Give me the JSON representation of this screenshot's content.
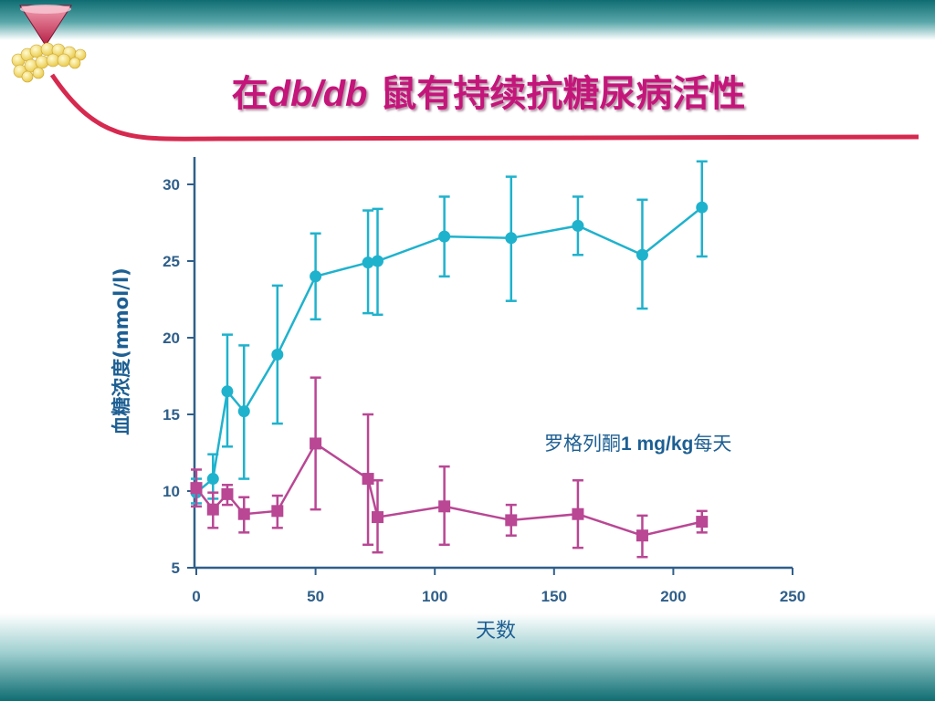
{
  "slide": {
    "title_prefix": "在",
    "title_italic": "db/db",
    "title_suffix": " 鼠有持续抗糖尿病活性"
  },
  "colors": {
    "band": "#0f6d72",
    "accent_line": "#d6294f",
    "title": "#c4167a",
    "axis": "#2f5f8a",
    "series_treated": "#1fb2cd",
    "series_control": "#b94794"
  },
  "chart_data": {
    "type": "line",
    "title": "",
    "xlabel": "天数",
    "ylabel": "血糖浓度(mmol/l)",
    "xlim": [
      0,
      250
    ],
    "ylim": [
      5,
      32
    ],
    "xticks": [
      0,
      50,
      100,
      150,
      200,
      250
    ],
    "yticks": [
      5,
      10,
      15,
      20,
      25,
      30
    ],
    "grid": false,
    "annotation": {
      "text_prefix": "罗格列酮",
      "text_bold": "1 mg/kg",
      "text_suffix": "每天"
    },
    "series": [
      {
        "marker": "circle",
        "color": "#1fb2cd",
        "points": [
          {
            "x": 0,
            "y": 9.9,
            "err_low": 9.2,
            "err_high": 10.8
          },
          {
            "x": 7,
            "y": 10.8,
            "err_low": 9.5,
            "err_high": 12.4
          },
          {
            "x": 13,
            "y": 16.5,
            "err_low": 12.9,
            "err_high": 20.2
          },
          {
            "x": 20,
            "y": 15.2,
            "err_low": 10.8,
            "err_high": 19.5
          },
          {
            "x": 34,
            "y": 18.9,
            "err_low": 14.4,
            "err_high": 23.4
          },
          {
            "x": 50,
            "y": 24.0,
            "err_low": 21.2,
            "err_high": 26.8
          },
          {
            "x": 72,
            "y": 24.9,
            "err_low": 21.6,
            "err_high": 28.3
          },
          {
            "x": 76,
            "y": 25.0,
            "err_low": 21.5,
            "err_high": 28.4
          },
          {
            "x": 104,
            "y": 26.6,
            "err_low": 24.0,
            "err_high": 29.2
          },
          {
            "x": 132,
            "y": 26.5,
            "err_low": 22.4,
            "err_high": 30.5
          },
          {
            "x": 160,
            "y": 27.3,
            "err_low": 25.4,
            "err_high": 29.2
          },
          {
            "x": 187,
            "y": 25.4,
            "err_low": 21.9,
            "err_high": 29.0
          },
          {
            "x": 212,
            "y": 28.5,
            "err_low": 25.3,
            "err_high": 31.5
          }
        ]
      },
      {
        "marker": "square",
        "color": "#b94794",
        "points": [
          {
            "x": 0,
            "y": 10.2,
            "err_low": 9.0,
            "err_high": 11.4
          },
          {
            "x": 7,
            "y": 8.8,
            "err_low": 7.6,
            "err_high": 9.9
          },
          {
            "x": 13,
            "y": 9.8,
            "err_low": 9.1,
            "err_high": 10.4
          },
          {
            "x": 20,
            "y": 8.5,
            "err_low": 7.3,
            "err_high": 9.6
          },
          {
            "x": 34,
            "y": 8.7,
            "err_low": 7.6,
            "err_high": 9.7
          },
          {
            "x": 50,
            "y": 13.1,
            "err_low": 8.8,
            "err_high": 17.4
          },
          {
            "x": 72,
            "y": 10.8,
            "err_low": 6.5,
            "err_high": 15.0
          },
          {
            "x": 76,
            "y": 8.3,
            "err_low": 6.0,
            "err_high": 10.7
          },
          {
            "x": 104,
            "y": 9.0,
            "err_low": 6.5,
            "err_high": 11.6
          },
          {
            "x": 132,
            "y": 8.1,
            "err_low": 7.1,
            "err_high": 9.1
          },
          {
            "x": 160,
            "y": 8.5,
            "err_low": 6.3,
            "err_high": 10.7
          },
          {
            "x": 187,
            "y": 7.1,
            "err_low": 5.7,
            "err_high": 8.4
          },
          {
            "x": 212,
            "y": 8.0,
            "err_low": 7.3,
            "err_high": 8.7
          }
        ]
      }
    ]
  }
}
